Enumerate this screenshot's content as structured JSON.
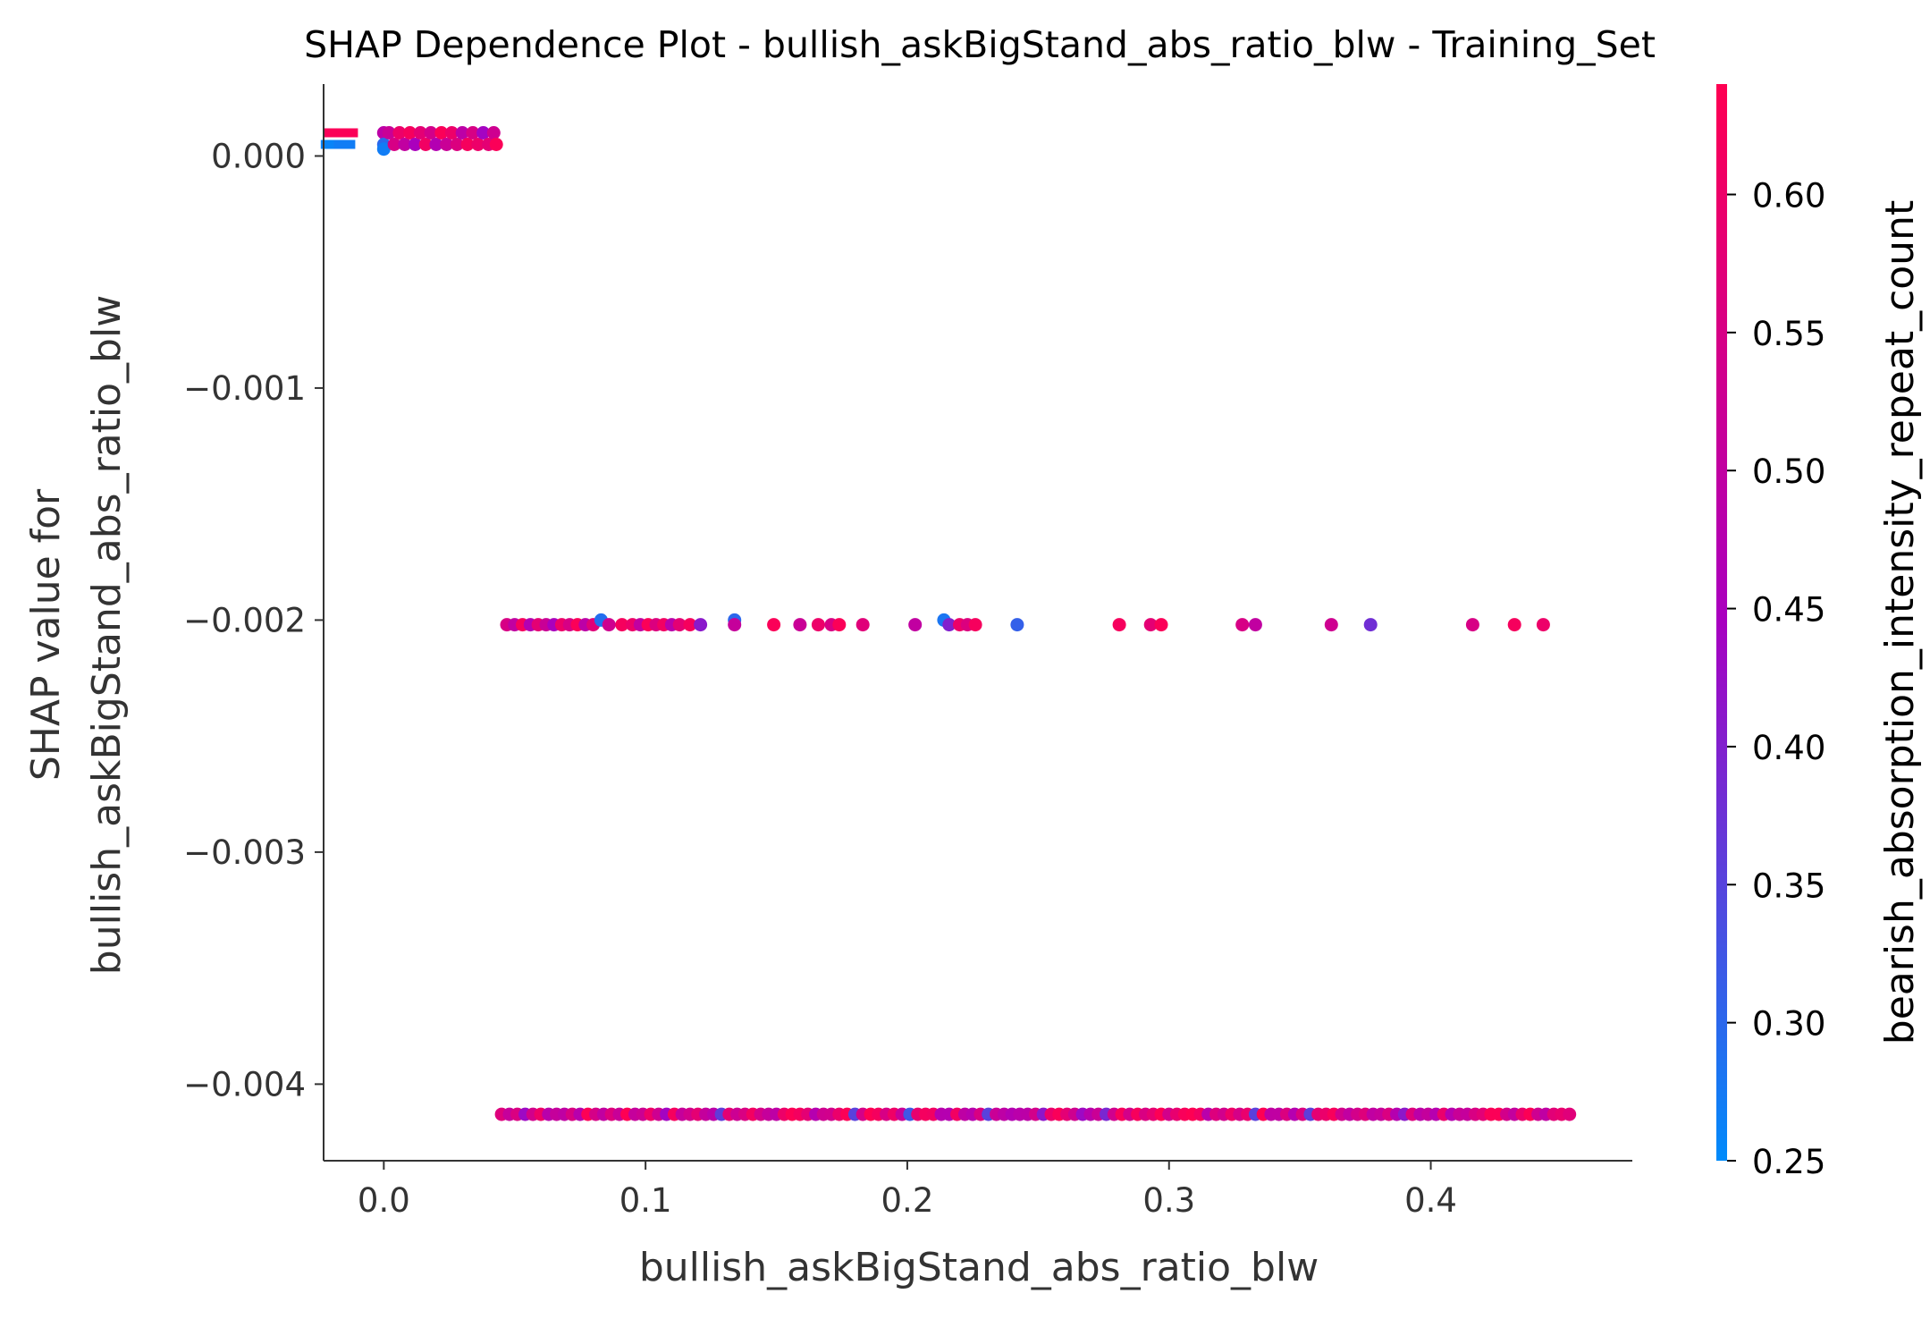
{
  "chart_data": {
    "type": "scatter",
    "title": "SHAP Dependence Plot - bullish_askBigStand_abs_ratio_blw - Training_Set",
    "xlabel": "bullish_askBigStand_abs_ratio_blw",
    "ylabel_lines": [
      "SHAP value for",
      "bullish_askBigStand_abs_ratio_blw"
    ],
    "xlim": [
      -0.023,
      0.477
    ],
    "ylim": [
      -0.00433,
      0.00031
    ],
    "x_ticks": [
      0.0,
      0.1,
      0.2,
      0.3,
      0.4
    ],
    "x_tick_labels": [
      "0.0",
      "0.1",
      "0.2",
      "0.3",
      "0.4"
    ],
    "y_ticks": [
      0.0,
      -0.001,
      -0.002,
      -0.003,
      -0.004
    ],
    "y_tick_labels": [
      "0.000",
      "−0.001",
      "−0.002",
      "−0.003",
      "−0.004"
    ],
    "grid": false,
    "colorbar": {
      "label": "bearish_absorption_intensity_repeat_count",
      "range": [
        0.25,
        0.64
      ],
      "ticks": [
        0.25,
        0.3,
        0.35,
        0.4,
        0.45,
        0.5,
        0.55,
        0.6
      ],
      "tick_labels": [
        "0.25",
        "0.30",
        "0.35",
        "0.40",
        "0.45",
        "0.50",
        "0.55",
        "0.60"
      ],
      "colormap": [
        "#008bfb",
        "#ff0052"
      ]
    },
    "points": [
      {
        "x": -0.019,
        "y": 0.0001,
        "c": 0.63
      },
      {
        "x": -0.014,
        "y": 0.0001,
        "c": 0.63
      },
      {
        "x": -0.02,
        "y": 5e-05,
        "c": 0.26
      },
      {
        "x": -0.015,
        "y": 5e-05,
        "c": 0.27
      },
      {
        "x": 0.0,
        "y": 0.0001,
        "c": 0.49
      },
      {
        "x": 0.0,
        "y": 5e-05,
        "c": 0.3
      },
      {
        "x": 0.0,
        "y": 3e-05,
        "c": 0.27
      },
      {
        "x": 0.002,
        "y": 0.0001,
        "c": 0.52
      },
      {
        "x": 0.004,
        "y": 5e-05,
        "c": 0.55
      },
      {
        "x": 0.006,
        "y": 0.0001,
        "c": 0.6
      },
      {
        "x": 0.008,
        "y": 5e-05,
        "c": 0.5
      },
      {
        "x": 0.01,
        "y": 0.0001,
        "c": 0.62
      },
      {
        "x": 0.012,
        "y": 5e-05,
        "c": 0.45
      },
      {
        "x": 0.014,
        "y": 0.0001,
        "c": 0.58
      },
      {
        "x": 0.016,
        "y": 5e-05,
        "c": 0.61
      },
      {
        "x": 0.018,
        "y": 0.0001,
        "c": 0.54
      },
      {
        "x": 0.02,
        "y": 5e-05,
        "c": 0.47
      },
      {
        "x": 0.022,
        "y": 0.0001,
        "c": 0.63
      },
      {
        "x": 0.024,
        "y": 5e-05,
        "c": 0.52
      },
      {
        "x": 0.026,
        "y": 0.0001,
        "c": 0.6
      },
      {
        "x": 0.028,
        "y": 5e-05,
        "c": 0.56
      },
      {
        "x": 0.03,
        "y": 0.0001,
        "c": 0.49
      },
      {
        "x": 0.032,
        "y": 5e-05,
        "c": 0.62
      },
      {
        "x": 0.034,
        "y": 0.0001,
        "c": 0.55
      },
      {
        "x": 0.036,
        "y": 5e-05,
        "c": 0.6
      },
      {
        "x": 0.038,
        "y": 0.0001,
        "c": 0.44
      },
      {
        "x": 0.04,
        "y": 5e-05,
        "c": 0.58
      },
      {
        "x": 0.042,
        "y": 0.0001,
        "c": 0.53
      },
      {
        "x": 0.043,
        "y": 5e-05,
        "c": 0.63
      },
      {
        "x": 0.047,
        "y": -0.00202,
        "c": 0.55
      },
      {
        "x": 0.05,
        "y": -0.00202,
        "c": 0.5
      },
      {
        "x": 0.053,
        "y": -0.00202,
        "c": 0.62
      },
      {
        "x": 0.056,
        "y": -0.00202,
        "c": 0.47
      },
      {
        "x": 0.059,
        "y": -0.00202,
        "c": 0.58
      },
      {
        "x": 0.062,
        "y": -0.00202,
        "c": 0.52
      },
      {
        "x": 0.065,
        "y": -0.00202,
        "c": 0.45
      },
      {
        "x": 0.068,
        "y": -0.00202,
        "c": 0.6
      },
      {
        "x": 0.071,
        "y": -0.00202,
        "c": 0.55
      },
      {
        "x": 0.074,
        "y": -0.00202,
        "c": 0.63
      },
      {
        "x": 0.077,
        "y": -0.00202,
        "c": 0.49
      },
      {
        "x": 0.08,
        "y": -0.00202,
        "c": 0.57
      },
      {
        "x": 0.083,
        "y": -0.002,
        "c": 0.29
      },
      {
        "x": 0.086,
        "y": -0.00202,
        "c": 0.53
      },
      {
        "x": 0.091,
        "y": -0.00202,
        "c": 0.62
      },
      {
        "x": 0.095,
        "y": -0.00202,
        "c": 0.6
      },
      {
        "x": 0.098,
        "y": -0.00202,
        "c": 0.5
      },
      {
        "x": 0.101,
        "y": -0.00202,
        "c": 0.63
      },
      {
        "x": 0.104,
        "y": -0.00202,
        "c": 0.56
      },
      {
        "x": 0.107,
        "y": -0.00202,
        "c": 0.61
      },
      {
        "x": 0.11,
        "y": -0.00202,
        "c": 0.48
      },
      {
        "x": 0.113,
        "y": -0.00202,
        "c": 0.58
      },
      {
        "x": 0.117,
        "y": -0.00202,
        "c": 0.62
      },
      {
        "x": 0.121,
        "y": -0.00202,
        "c": 0.41
      },
      {
        "x": 0.134,
        "y": -0.002,
        "c": 0.3
      },
      {
        "x": 0.134,
        "y": -0.00202,
        "c": 0.51
      },
      {
        "x": 0.149,
        "y": -0.00202,
        "c": 0.63
      },
      {
        "x": 0.159,
        "y": -0.00202,
        "c": 0.52
      },
      {
        "x": 0.166,
        "y": -0.00202,
        "c": 0.6
      },
      {
        "x": 0.171,
        "y": -0.00202,
        "c": 0.55
      },
      {
        "x": 0.174,
        "y": -0.00202,
        "c": 0.63
      },
      {
        "x": 0.183,
        "y": -0.00202,
        "c": 0.57
      },
      {
        "x": 0.203,
        "y": -0.00202,
        "c": 0.5
      },
      {
        "x": 0.214,
        "y": -0.002,
        "c": 0.28
      },
      {
        "x": 0.216,
        "y": -0.00202,
        "c": 0.4
      },
      {
        "x": 0.22,
        "y": -0.00202,
        "c": 0.6
      },
      {
        "x": 0.223,
        "y": -0.00202,
        "c": 0.56
      },
      {
        "x": 0.226,
        "y": -0.00202,
        "c": 0.62
      },
      {
        "x": 0.242,
        "y": -0.00202,
        "c": 0.31
      },
      {
        "x": 0.281,
        "y": -0.00202,
        "c": 0.62
      },
      {
        "x": 0.293,
        "y": -0.00202,
        "c": 0.58
      },
      {
        "x": 0.297,
        "y": -0.00202,
        "c": 0.63
      },
      {
        "x": 0.328,
        "y": -0.00202,
        "c": 0.55
      },
      {
        "x": 0.333,
        "y": -0.00202,
        "c": 0.5
      },
      {
        "x": 0.362,
        "y": -0.00202,
        "c": 0.53
      },
      {
        "x": 0.377,
        "y": -0.00202,
        "c": 0.38
      },
      {
        "x": 0.416,
        "y": -0.00202,
        "c": 0.55
      },
      {
        "x": 0.432,
        "y": -0.00202,
        "c": 0.62
      },
      {
        "x": 0.443,
        "y": -0.00202,
        "c": 0.6
      }
    ],
    "dense_band": {
      "y": -0.00413,
      "x_start": 0.045,
      "x_end": 0.453,
      "step": 0.003,
      "c_seed": 7
    }
  }
}
